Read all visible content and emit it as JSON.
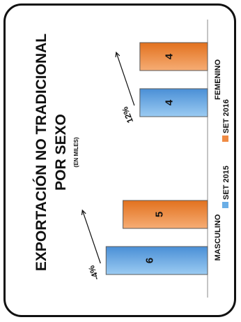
{
  "chart_data": {
    "type": "bar",
    "orientation": "horizontal",
    "title": "EXPORTACIÓN NO TRADICIONAL",
    "title_line2": "POR SEXO",
    "subtitle": "(EN MILES)",
    "categories": [
      "MASCULINO",
      "FEMENINO"
    ],
    "series": [
      {
        "name": "SET 2015",
        "values": [
          6,
          4
        ],
        "color": "#6aaee6"
      },
      {
        "name": "SET 2016",
        "values": [
          5,
          4
        ],
        "color": "#ef8a43"
      }
    ],
    "annotations": [
      "-4%",
      "12%"
    ],
    "legend": "bottom",
    "grid": false,
    "ylim": [
      0,
      7
    ]
  }
}
